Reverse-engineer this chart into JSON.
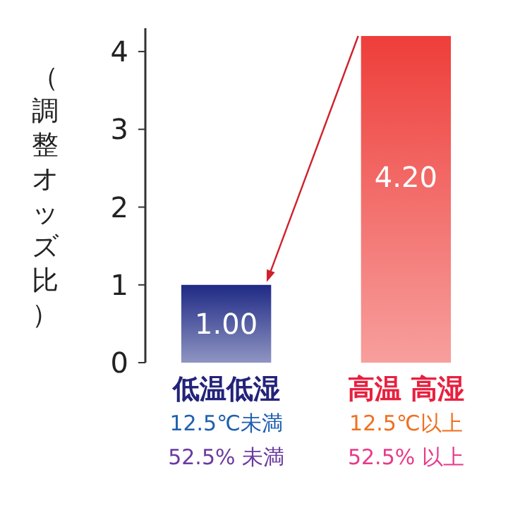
{
  "chart_data": {
    "type": "bar",
    "ylabel": "（調整オッズ比）",
    "categories": [
      "低温低湿\n12.5℃未満\n52.5% 未満",
      "高温 高湿\n12.5℃以上\n52.5% 以上"
    ],
    "values": [
      1.0,
      4.2
    ],
    "colors": [
      "#1f2a85",
      "#ee3e3a"
    ],
    "value_labels": [
      "1.00",
      "4.20"
    ],
    "ylim": [
      0,
      4.3
    ],
    "yticks": [
      0,
      1,
      2,
      3,
      4
    ],
    "grid": false
  }
}
